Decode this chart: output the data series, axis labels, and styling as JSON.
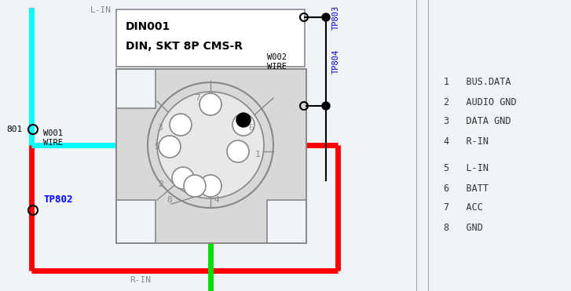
{
  "bg_color": "#f0f4f8",
  "line_color": "#888888",
  "black": "#000000",
  "red_wire": "#ff0000",
  "cyan_wire": "#00ffff",
  "green_wire": "#00dd00",
  "title_text1": "DIN001",
  "title_text2": "DIN, SKT 8P CMS-R",
  "wire_label2": "W002\nWIRE",
  "wire_label1": "W001\nWIRE",
  "tp802": "TP802",
  "tp803": "TP803",
  "tp804": "TP804",
  "l_in": "L-IN",
  "r_in": "R-IN",
  "node801": "801",
  "pin_legend": [
    "1   BUS.DATA",
    "2   AUDIO GND",
    "3   DATA GND",
    "4   R-IN",
    "",
    "5   L-IN",
    "6   BATT",
    "7   ACC",
    "8   GND"
  ]
}
